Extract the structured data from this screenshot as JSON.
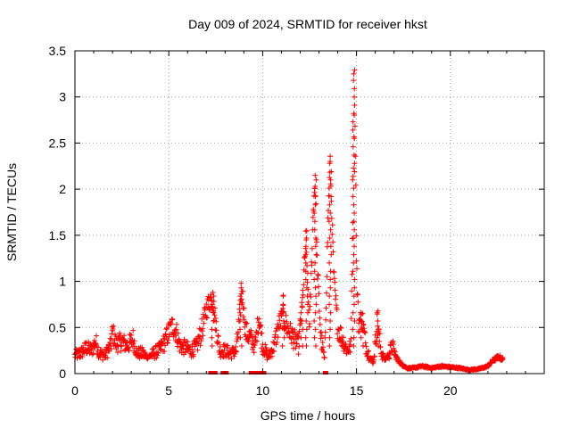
{
  "chart_data": {
    "type": "scatter",
    "title": "Day 009 of 2024, SRMTID for receiver hkst",
    "xlabel": "GPS time / hours",
    "ylabel": "SRMTID / TECUs",
    "xlim": [
      0,
      25
    ],
    "ylim": [
      0,
      3.5
    ],
    "x_ticks": [
      0,
      5,
      10,
      15,
      20
    ],
    "x_tick_labels": [
      "0",
      "5",
      "10",
      "15",
      "20"
    ],
    "y_ticks": [
      0,
      0.5,
      1,
      1.5,
      2,
      2.5,
      3,
      3.5
    ],
    "y_tick_labels": [
      "0",
      "0.5",
      "1",
      "1.5",
      "2",
      "2.5",
      "3",
      "3.5"
    ],
    "grid": true,
    "marker": "+",
    "series": [
      {
        "name": "SRMTID",
        "color": "#ff0000",
        "profile": [
          [
            0.0,
            0.2
          ],
          [
            0.3,
            0.22
          ],
          [
            0.6,
            0.28
          ],
          [
            0.9,
            0.25
          ],
          [
            1.1,
            0.35
          ],
          [
            1.3,
            0.22
          ],
          [
            1.6,
            0.2
          ],
          [
            1.9,
            0.3
          ],
          [
            2.0,
            0.45
          ],
          [
            2.2,
            0.32
          ],
          [
            2.5,
            0.35
          ],
          [
            2.8,
            0.3
          ],
          [
            3.1,
            0.38
          ],
          [
            3.3,
            0.22
          ],
          [
            3.6,
            0.22
          ],
          [
            3.9,
            0.18
          ],
          [
            4.2,
            0.22
          ],
          [
            4.5,
            0.26
          ],
          [
            4.8,
            0.35
          ],
          [
            5.0,
            0.45
          ],
          [
            5.2,
            0.52
          ],
          [
            5.4,
            0.45
          ],
          [
            5.6,
            0.3
          ],
          [
            5.9,
            0.28
          ],
          [
            6.2,
            0.25
          ],
          [
            6.5,
            0.3
          ],
          [
            6.8,
            0.5
          ],
          [
            7.0,
            0.7
          ],
          [
            7.3,
            0.85
          ],
          [
            7.5,
            0.55
          ],
          [
            7.7,
            0.25
          ],
          [
            8.0,
            0.25
          ],
          [
            8.3,
            0.22
          ],
          [
            8.6,
            0.25
          ],
          [
            8.9,
            0.9
          ],
          [
            9.1,
            0.45
          ],
          [
            9.3,
            0.4
          ],
          [
            9.6,
            0.3
          ],
          [
            9.8,
            0.62
          ],
          [
            10.0,
            0.3
          ],
          [
            10.3,
            0.18
          ],
          [
            10.6,
            0.3
          ],
          [
            10.9,
            0.55
          ],
          [
            11.1,
            0.62
          ],
          [
            11.3,
            0.5
          ],
          [
            11.6,
            0.4
          ],
          [
            11.9,
            0.3
          ],
          [
            12.1,
            0.7
          ],
          [
            12.3,
            1.45
          ],
          [
            12.5,
            0.5
          ],
          [
            12.7,
            1.8
          ],
          [
            12.8,
            2.1
          ],
          [
            12.9,
            1.2
          ],
          [
            13.1,
            0.4
          ],
          [
            13.3,
            0.15
          ],
          [
            13.5,
            1.8
          ],
          [
            13.6,
            2.25
          ],
          [
            13.8,
            1.0
          ],
          [
            14.0,
            0.5
          ],
          [
            14.3,
            0.35
          ],
          [
            14.5,
            0.25
          ],
          [
            14.7,
            0.3
          ],
          [
            14.9,
            3.2
          ],
          [
            15.0,
            1.2
          ],
          [
            15.1,
            0.55
          ],
          [
            15.3,
            0.6
          ],
          [
            15.5,
            0.3
          ],
          [
            15.7,
            0.18
          ],
          [
            15.9,
            0.12
          ],
          [
            16.1,
            0.55
          ],
          [
            16.3,
            0.25
          ],
          [
            16.5,
            0.15
          ],
          [
            16.7,
            0.2
          ],
          [
            16.9,
            0.3
          ],
          [
            17.1,
            0.18
          ],
          [
            17.4,
            0.1
          ],
          [
            17.7,
            0.06
          ],
          [
            18.0,
            0.06
          ],
          [
            18.5,
            0.08
          ],
          [
            19.0,
            0.06
          ],
          [
            19.5,
            0.08
          ],
          [
            20.0,
            0.07
          ],
          [
            20.5,
            0.06
          ],
          [
            21.0,
            0.04
          ],
          [
            21.5,
            0.05
          ],
          [
            22.0,
            0.08
          ],
          [
            22.3,
            0.15
          ],
          [
            22.6,
            0.18
          ],
          [
            22.8,
            0.15
          ]
        ],
        "spikes": [
          [
            12.35,
            1.55
          ],
          [
            12.8,
            2.15
          ],
          [
            13.6,
            2.3
          ],
          [
            14.85,
            3.25
          ],
          [
            8.85,
            0.98
          ],
          [
            7.35,
            0.88
          ],
          [
            12.1,
            0.72
          ],
          [
            16.15,
            0.68
          ],
          [
            15.3,
            0.65
          ],
          [
            11.1,
            0.85
          ]
        ],
        "zero_points": [
          7.25,
          7.45,
          7.9,
          8.05,
          9.4,
          9.55,
          9.7,
          9.95,
          10.05,
          13.35
        ],
        "sample_interval_hours": 0.02,
        "scatter_amplitude": 0.12
      }
    ]
  }
}
